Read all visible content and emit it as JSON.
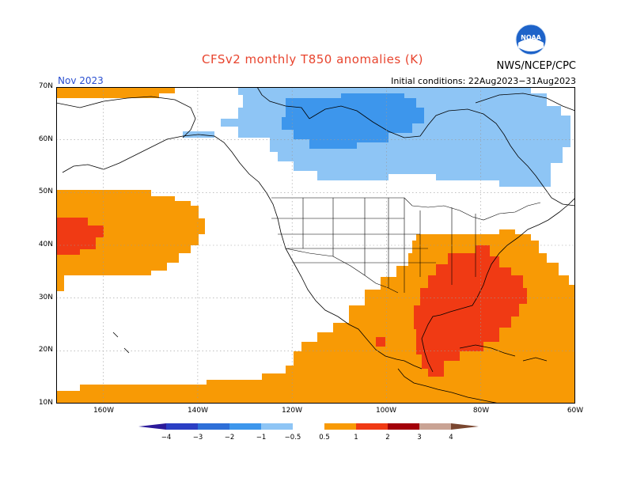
{
  "title": "CFSv2 monthly T850 anomalies (K)",
  "agency": "NWS/NCEP/CPC",
  "logo_text": "NOAA",
  "period": "Nov 2023",
  "initial_conditions": "Initial conditions: 22Aug2023−31Aug2023",
  "lat_labels": [
    "70N",
    "60N",
    "50N",
    "40N",
    "30N",
    "20N",
    "10N"
  ],
  "lon_labels": [
    "160W",
    "140W",
    "120W",
    "100W",
    "80W",
    "60W"
  ],
  "colorbar": {
    "ticks": [
      "−4",
      "−3",
      "−2",
      "−1",
      "−0.5",
      "0.5",
      "1",
      "2",
      "3",
      "4"
    ],
    "colors": {
      "lt_minus4": "#2c1a9a",
      "m4_m3": "#2b3fc4",
      "m3_m2": "#2e6fd8",
      "m2_m1": "#3d96ec",
      "m1_m05": "#8ec5f5",
      "m05_05": "#ffffff",
      "p05_1": "#f89a05",
      "p1_2": "#f03a14",
      "p2_3": "#a3000a",
      "p3_4": "#c9a394",
      "gt4": "#7a4730"
    }
  }
}
